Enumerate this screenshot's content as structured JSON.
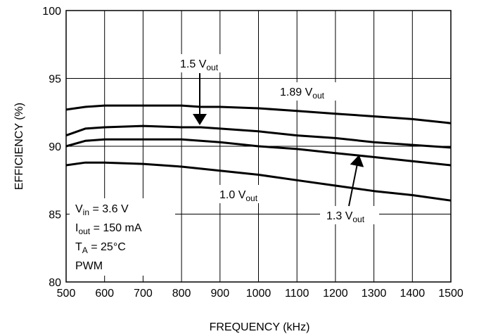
{
  "chart_data": {
    "type": "line",
    "xlabel": "FREQUENCY (kHz)",
    "ylabel": "EFFICIENCY (%)",
    "xlim": [
      500,
      1500
    ],
    "ylim": [
      80,
      100
    ],
    "x_ticks": [
      "500",
      "600",
      "700",
      "800",
      "900",
      "1000",
      "1100",
      "1200",
      "1300",
      "1400",
      "1500"
    ],
    "y_ticks": [
      "80",
      "85",
      "90",
      "95",
      "100"
    ],
    "grid": true,
    "series": [
      {
        "name": "1.89 V",
        "x": [
          500,
          550,
          600,
          700,
          800,
          850,
          900,
          1000,
          1100,
          1200,
          1300,
          1400,
          1500
        ],
        "y": [
          92.7,
          92.9,
          93.0,
          93.0,
          93.0,
          92.9,
          92.9,
          92.8,
          92.6,
          92.4,
          92.2,
          92.0,
          91.7
        ]
      },
      {
        "name": "1.5 V",
        "x": [
          500,
          550,
          600,
          700,
          800,
          850,
          900,
          1000,
          1100,
          1200,
          1300,
          1400,
          1500
        ],
        "y": [
          90.8,
          91.3,
          91.4,
          91.5,
          91.4,
          91.4,
          91.3,
          91.1,
          90.8,
          90.6,
          90.3,
          90.1,
          89.9
        ]
      },
      {
        "name": "1.3 V",
        "x": [
          500,
          550,
          600,
          700,
          800,
          850,
          900,
          1000,
          1100,
          1200,
          1300,
          1400,
          1500
        ],
        "y": [
          90.0,
          90.4,
          90.5,
          90.5,
          90.5,
          90.4,
          90.3,
          90.0,
          89.8,
          89.5,
          89.2,
          88.9,
          88.6
        ]
      },
      {
        "name": "1.0 V",
        "x": [
          500,
          550,
          600,
          700,
          800,
          900,
          1000,
          1100,
          1200,
          1300,
          1400,
          1500
        ],
        "y": [
          88.6,
          88.8,
          88.8,
          88.7,
          88.5,
          88.2,
          87.9,
          87.5,
          87.1,
          86.7,
          86.4,
          86.0
        ]
      }
    ],
    "annotations": {
      "label_189": {
        "v": "1.89 V",
        "sub": "out"
      },
      "label_15": {
        "v": "1.5 V",
        "sub": "out"
      },
      "label_13": {
        "v": "1.3 V",
        "sub": "out"
      },
      "label_10": {
        "v": "1.0 V",
        "sub": "out"
      },
      "conditions": {
        "vin": {
          "sym": "V",
          "sub": "in",
          "rest": " = 3.6 V"
        },
        "iout": {
          "sym": "I",
          "sub": "out",
          "rest": " = 150 mA"
        },
        "ta": {
          "sym": "T",
          "sub": "A",
          "rest": " = 25°C"
        },
        "mode": "PWM"
      }
    }
  }
}
